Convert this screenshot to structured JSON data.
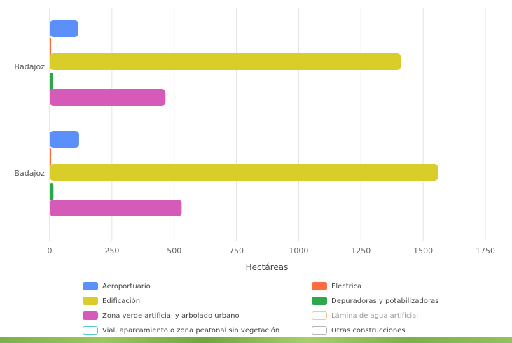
{
  "chart_data": {
    "type": "bar",
    "orientation": "horizontal",
    "categories": [
      "Badajoz",
      "Badajoz"
    ],
    "xlabel": "Hectáreas",
    "xlim": [
      0,
      1750
    ],
    "xticks": [
      "0",
      "250",
      "500",
      "750",
      "1000",
      "1250",
      "1500",
      "1750"
    ],
    "grid": true,
    "legend_position": "bottom",
    "series": [
      {
        "name": "Aeroportuario",
        "color": "#5b8ff9",
        "values": [
          115,
          118
        ]
      },
      {
        "name": "Eléctrica",
        "color": "#ff6b3d",
        "values": [
          3,
          5
        ]
      },
      {
        "name": "Edificación",
        "color": "#d9cd2a",
        "values": [
          1410,
          1560
        ]
      },
      {
        "name": "Depuradoras y potabilizadoras",
        "color": "#2ca84a",
        "values": [
          12,
          15
        ]
      },
      {
        "name": "Zona verde artificial y arbolado urbano",
        "color": "#d65bb8",
        "values": [
          465,
          530
        ]
      },
      {
        "name": "Lámina de agua artificial",
        "color": "#f2c98a",
        "outline": true,
        "values": [
          0,
          0
        ]
      },
      {
        "name": "Vial, aparcamiento o zona peatonal sin vegetación",
        "color": "#5ac8c8",
        "outline": true,
        "values": [
          0,
          0
        ]
      },
      {
        "name": "Otras construcciones",
        "color": "#b5b5b5",
        "outline": true,
        "values": [
          0,
          0
        ]
      }
    ]
  }
}
